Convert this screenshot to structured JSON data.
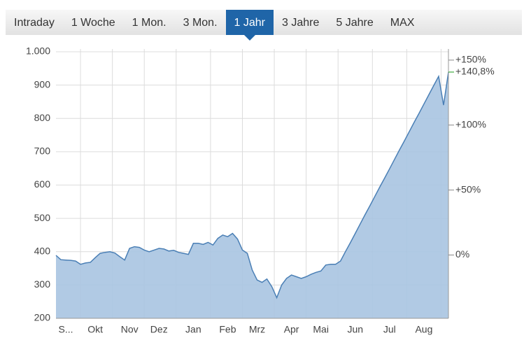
{
  "tabs": {
    "items": [
      "Intraday",
      "1 Woche",
      "1 Mon.",
      "3 Mon.",
      "1 Jahr",
      "3 Jahre",
      "5 Jahre",
      "MAX"
    ],
    "active": 4
  },
  "chart_data": {
    "type": "area",
    "categories": [
      null,
      null,
      "S...",
      null,
      null,
      null,
      null,
      null,
      "Okt",
      null,
      null,
      null,
      null,
      null,
      null,
      "Nov",
      null,
      null,
      null,
      null,
      null,
      "Dez",
      null,
      null,
      null,
      null,
      null,
      null,
      "Jan",
      null,
      null,
      null,
      null,
      null,
      null,
      "Feb",
      null,
      null,
      null,
      null,
      null,
      "Mrz",
      null,
      null,
      null,
      null,
      null,
      null,
      "Apr",
      null,
      null,
      null,
      null,
      null,
      "Mai",
      null,
      null,
      null,
      null,
      null,
      null,
      "Jun",
      null,
      null,
      null,
      null,
      null,
      null,
      "Jul",
      null,
      null,
      null,
      null,
      null,
      null,
      "Aug",
      null,
      null,
      null,
      null,
      null
    ],
    "values": [
      389,
      376,
      375,
      374,
      372,
      362,
      366,
      368,
      382,
      395,
      398,
      400,
      396,
      385,
      375,
      410,
      415,
      413,
      405,
      400,
      405,
      410,
      408,
      402,
      404,
      398,
      395,
      392,
      425,
      425,
      422,
      428,
      420,
      440,
      450,
      445,
      455,
      438,
      405,
      395,
      345,
      315,
      308,
      318,
      295,
      262,
      300,
      320,
      330,
      325,
      320,
      325,
      332,
      338,
      342,
      360,
      362,
      362,
      372,
      400,
      427,
      455,
      483,
      511,
      538,
      566,
      594,
      621,
      649,
      677,
      705,
      732,
      760,
      788,
      815,
      843,
      871,
      899,
      926,
      840,
      939
    ],
    "color": "#4a7fb5",
    "fill": "#a9c4e1",
    "ylim": [
      200,
      1000
    ],
    "yticks": [
      200,
      300,
      400,
      500,
      600,
      700,
      800,
      900,
      {
        "value": 1000,
        "label": "1.000"
      }
    ],
    "y2lim": [
      -48.72,
      156.41
    ],
    "y2ticks": [
      {
        "value": 0,
        "label": "0%"
      },
      {
        "value": 50,
        "label": "+50%"
      },
      {
        "value": 100,
        "label": "+100%"
      },
      {
        "value": 150,
        "label": "+150%"
      }
    ],
    "last_change": {
      "value": 140.8,
      "label": "+140,8%",
      "color": "#1a9a1a"
    },
    "grid": true
  }
}
